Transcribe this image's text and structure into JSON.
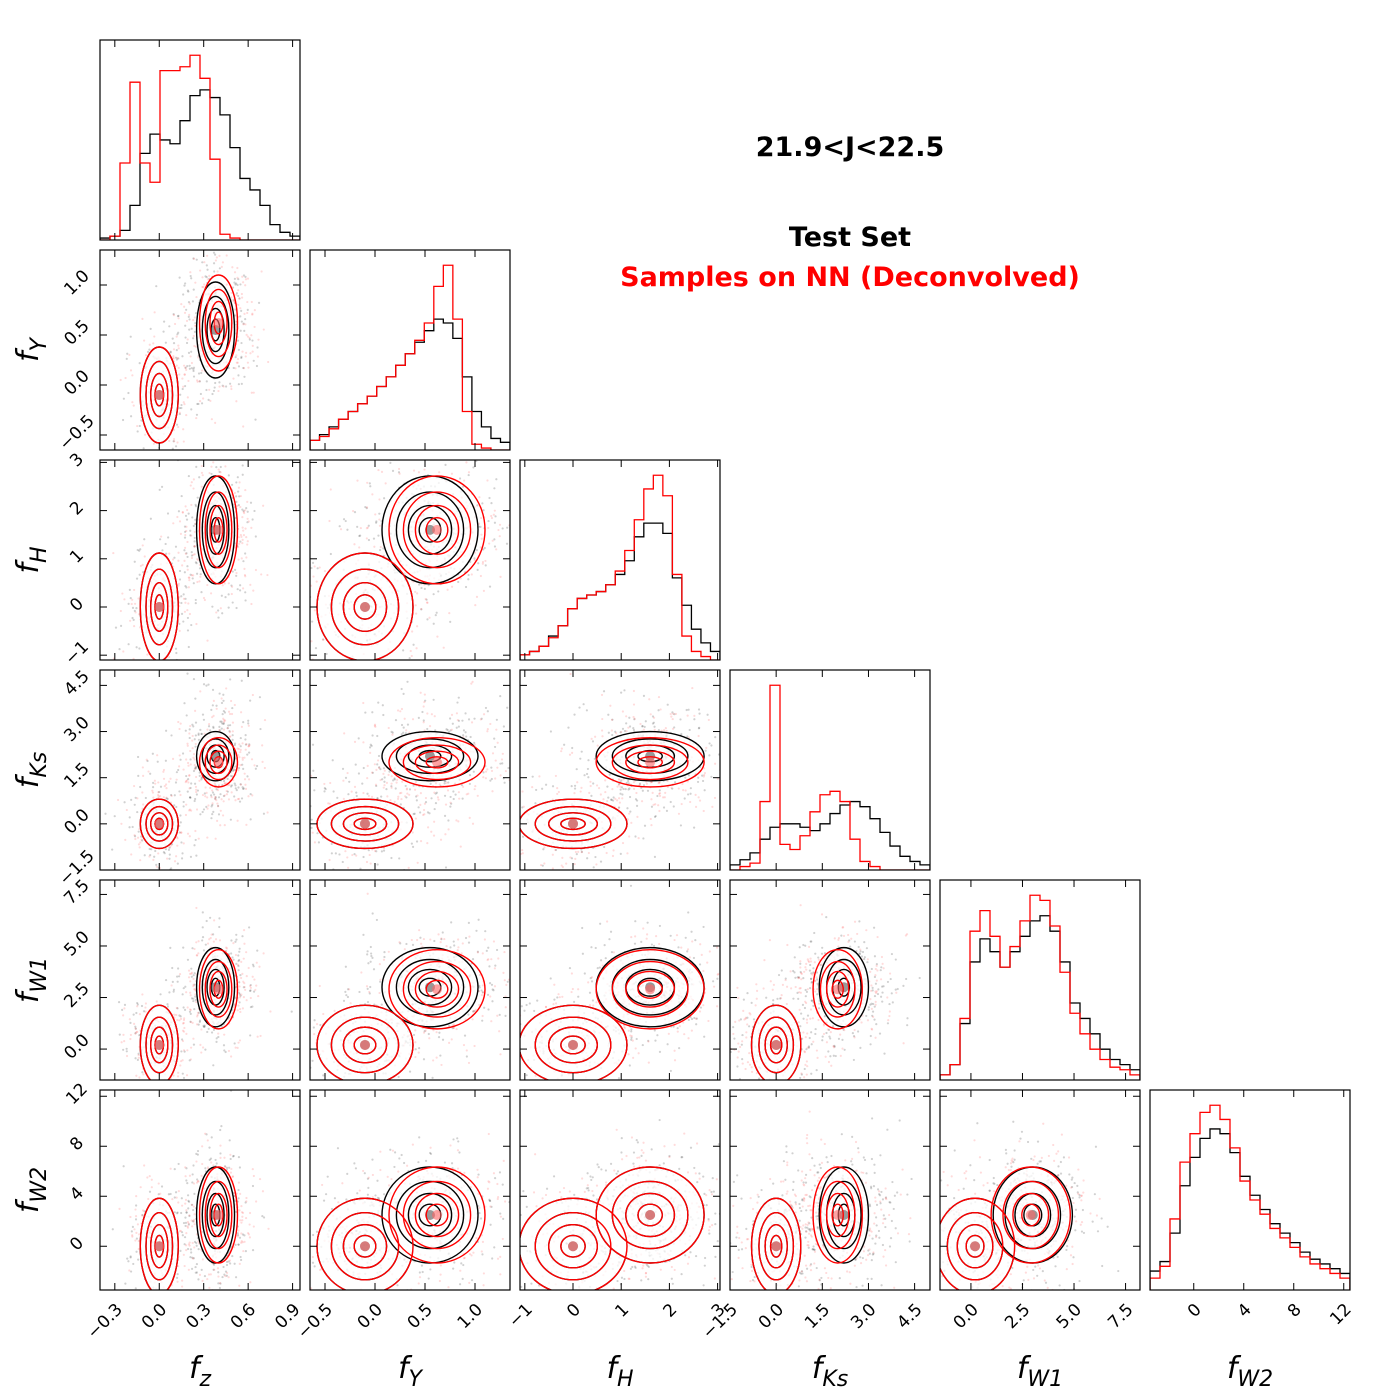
{
  "annotations": {
    "range_label": "21.9<J<22.5",
    "legend_test": "Test Set",
    "legend_samples": "Samples on NN (Deconvolved)"
  },
  "colors": {
    "test_set": "#000000",
    "samples": "#ff0000",
    "panel_border": "#000000",
    "background": "#ffffff"
  },
  "chart_data": {
    "type": "corner",
    "series": [
      {
        "name": "Test Set",
        "color": "#000000"
      },
      {
        "name": "Samples on NN (Deconvolved)",
        "color": "#ff0000"
      }
    ],
    "variables": [
      {
        "key": "fz",
        "label": "f",
        "sub": "z",
        "range": [
          -0.4,
          0.95
        ],
        "ticks": [
          "−0.3",
          "0.0",
          "0.3",
          "0.6",
          "0.9"
        ],
        "tick_values": [
          -0.3,
          0.0,
          0.3,
          0.6,
          0.9
        ]
      },
      {
        "key": "fY",
        "label": "f",
        "sub": "Y",
        "range": [
          -0.65,
          1.35
        ],
        "ticks": [
          "−0.5",
          "0.0",
          "0.5",
          "1.0"
        ],
        "tick_values": [
          -0.5,
          0.0,
          0.5,
          1.0
        ]
      },
      {
        "key": "fH",
        "label": "f",
        "sub": "H",
        "range": [
          -1.1,
          3.05
        ],
        "ticks": [
          "−1",
          "0",
          "1",
          "2",
          "3"
        ],
        "tick_values": [
          -1,
          0,
          1,
          2,
          3
        ]
      },
      {
        "key": "fKs",
        "label": "f",
        "sub": "Ks",
        "range": [
          -1.5,
          5.0
        ],
        "ticks": [
          "−1.5",
          "0.0",
          "1.5",
          "3.0",
          "4.5"
        ],
        "tick_values": [
          -1.5,
          0.0,
          1.5,
          3.0,
          4.5
        ]
      },
      {
        "key": "fW1",
        "label": "f",
        "sub": "W1",
        "range": [
          -1.5,
          8.2
        ],
        "ticks": [
          "0.0",
          "2.5",
          "5.0",
          "7.5"
        ],
        "tick_values": [
          0.0,
          2.5,
          5.0,
          7.5
        ]
      },
      {
        "key": "fW2",
        "label": "f",
        "sub": "W2",
        "range": [
          -3.5,
          12.5
        ],
        "ticks": [
          "0",
          "4",
          "8",
          "12"
        ],
        "tick_values": [
          0,
          4,
          8,
          12
        ]
      }
    ],
    "marginals": [
      {
        "variable": "fz",
        "test": [
          0.01,
          0.02,
          0.05,
          0.18,
          0.45,
          0.55,
          0.52,
          0.5,
          0.62,
          0.75,
          0.78,
          0.74,
          0.65,
          0.48,
          0.32,
          0.26,
          0.18,
          0.08,
          0.04,
          0.02
        ],
        "samples": [
          0.0,
          0.02,
          0.4,
          0.82,
          0.4,
          0.3,
          0.88,
          0.88,
          0.9,
          0.96,
          0.84,
          0.42,
          0.03,
          0.01,
          0.0,
          0.0,
          0.0,
          0.0,
          0.0,
          0.0
        ]
      },
      {
        "variable": "fY",
        "test": [
          0.05,
          0.08,
          0.12,
          0.16,
          0.2,
          0.24,
          0.28,
          0.33,
          0.38,
          0.44,
          0.5,
          0.56,
          0.62,
          0.68,
          0.66,
          0.58,
          0.38,
          0.2,
          0.12,
          0.06,
          0.04
        ],
        "samples": [
          0.05,
          0.07,
          0.11,
          0.16,
          0.2,
          0.24,
          0.28,
          0.33,
          0.38,
          0.44,
          0.5,
          0.57,
          0.66,
          0.85,
          0.96,
          0.68,
          0.2,
          0.03,
          0.01,
          0.0,
          0.0
        ]
      },
      {
        "variable": "fH",
        "test": [
          0.03,
          0.05,
          0.08,
          0.14,
          0.2,
          0.3,
          0.36,
          0.38,
          0.4,
          0.44,
          0.5,
          0.58,
          0.72,
          0.8,
          0.8,
          0.74,
          0.48,
          0.32,
          0.18,
          0.1,
          0.05
        ],
        "samples": [
          0.03,
          0.05,
          0.08,
          0.13,
          0.2,
          0.3,
          0.36,
          0.38,
          0.4,
          0.44,
          0.52,
          0.64,
          0.82,
          1.0,
          1.08,
          0.96,
          0.5,
          0.14,
          0.05,
          0.02,
          0.0
        ]
      },
      {
        "variable": "fKs",
        "test": [
          0.03,
          0.06,
          0.1,
          0.18,
          0.25,
          0.27,
          0.27,
          0.25,
          0.23,
          0.27,
          0.33,
          0.38,
          0.4,
          0.37,
          0.3,
          0.22,
          0.14,
          0.08,
          0.05,
          0.03
        ],
        "samples": [
          0.0,
          0.02,
          0.04,
          0.4,
          1.08,
          0.15,
          0.12,
          0.2,
          0.34,
          0.44,
          0.46,
          0.4,
          0.18,
          0.05,
          0.02,
          0.0,
          0.0,
          0.0,
          0.0,
          0.0
        ]
      },
      {
        "variable": "fW1",
        "test": [
          0.02,
          0.06,
          0.22,
          0.46,
          0.55,
          0.5,
          0.44,
          0.5,
          0.56,
          0.62,
          0.64,
          0.58,
          0.46,
          0.3,
          0.24,
          0.18,
          0.12,
          0.08,
          0.06,
          0.04
        ],
        "samples": [
          0.02,
          0.06,
          0.24,
          0.58,
          0.66,
          0.56,
          0.44,
          0.52,
          0.62,
          0.72,
          0.7,
          0.6,
          0.42,
          0.26,
          0.18,
          0.12,
          0.08,
          0.05,
          0.04,
          0.02
        ]
      },
      {
        "variable": "fW2",
        "test": [
          0.08,
          0.12,
          0.24,
          0.44,
          0.56,
          0.64,
          0.68,
          0.66,
          0.58,
          0.48,
          0.4,
          0.34,
          0.28,
          0.24,
          0.2,
          0.16,
          0.13,
          0.11,
          0.09,
          0.07
        ],
        "samples": [
          0.05,
          0.1,
          0.3,
          0.54,
          0.66,
          0.75,
          0.78,
          0.72,
          0.6,
          0.46,
          0.38,
          0.32,
          0.26,
          0.22,
          0.18,
          0.14,
          0.11,
          0.09,
          0.07,
          0.05
        ]
      }
    ],
    "joint_centers": {
      "test": [
        {
          "fz": 0.0,
          "fY": -0.1,
          "fH": 0.0,
          "fKs": 0.0,
          "fW1": 0.2,
          "fW2": 0.0,
          "weight": 0.3
        },
        {
          "fz": 0.38,
          "fY": 0.55,
          "fH": 1.6,
          "fKs": 2.2,
          "fW1": 3.0,
          "fW2": 2.5,
          "weight": 0.7
        }
      ],
      "samples": [
        {
          "fz": 0.0,
          "fY": -0.1,
          "fH": 0.0,
          "fKs": 0.0,
          "fW1": 0.2,
          "fW2": 0.0,
          "weight": 0.35
        },
        {
          "fz": 0.4,
          "fY": 0.62,
          "fH": 1.6,
          "fKs": 2.0,
          "fW1": 2.9,
          "fW2": 2.5,
          "weight": 0.65
        }
      ]
    },
    "grid": false,
    "legend_placement": "top-right"
  }
}
